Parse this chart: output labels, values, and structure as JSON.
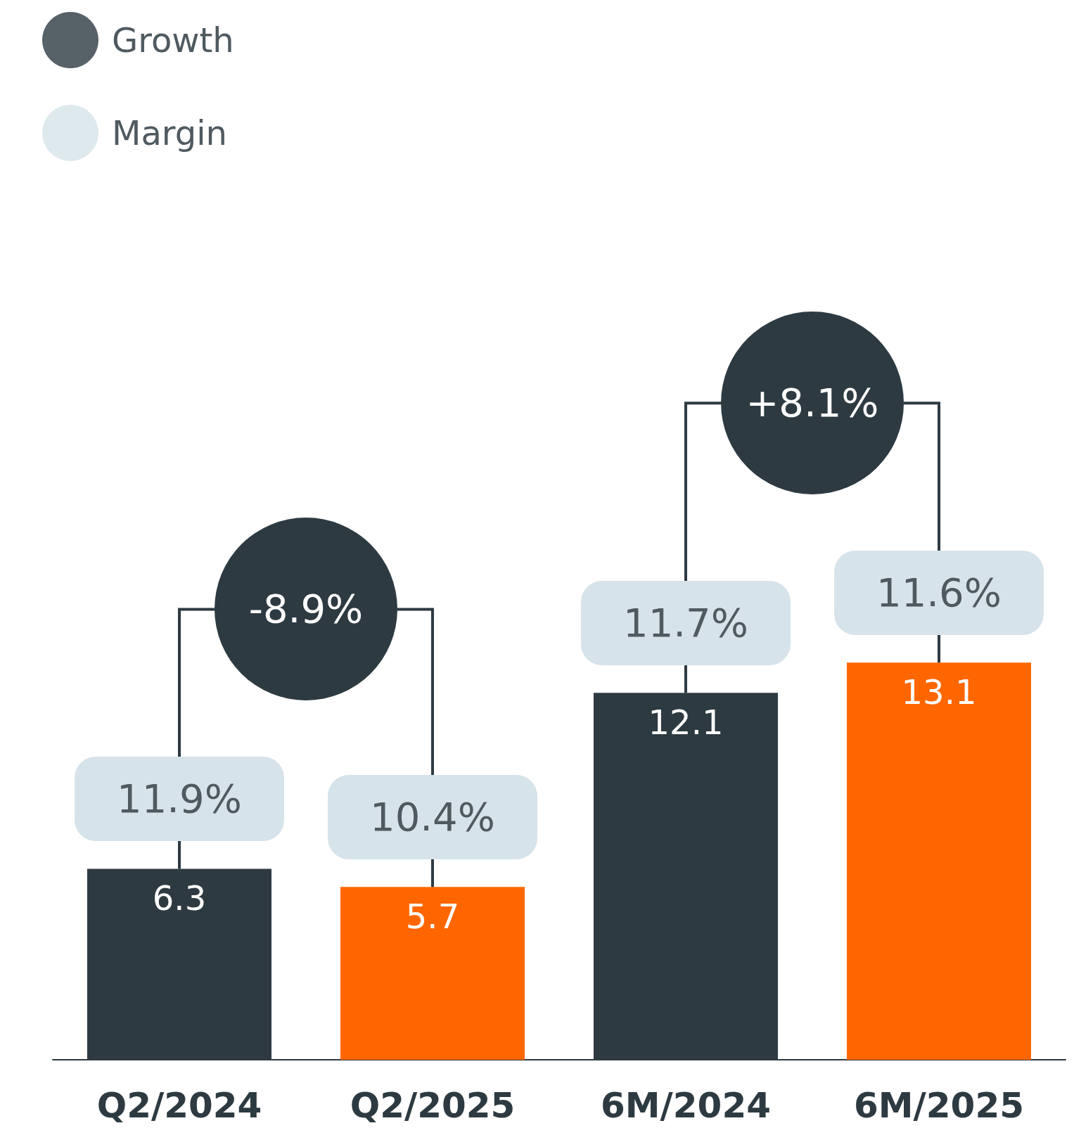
{
  "chart_data": {
    "type": "bar",
    "categories": [
      "Q2/2024",
      "Q2/2025",
      "6M/2024",
      "6M/2025"
    ],
    "series": [
      {
        "values": [
          6.3,
          5.7,
          12.1,
          13.1
        ],
        "colors": [
          "#2d3a42",
          "#ff6600",
          "#2d3a42",
          "#ff6600"
        ]
      },
      {
        "name": "Growth",
        "type": "scatter",
        "color": "#2d3a42",
        "values": [
          null,
          null,
          null,
          null
        ]
      },
      {
        "name": "Margin",
        "type": "scatter",
        "color": "#d6e3ea",
        "values": [
          null,
          null,
          null,
          null
        ]
      }
    ],
    "data_labels": true,
    "legend": "top left",
    "annotations": [
      "11.9%",
      "10.4%",
      "11.7%",
      "11.6%",
      "-8.9%",
      "+8.1%"
    ]
  }
}
